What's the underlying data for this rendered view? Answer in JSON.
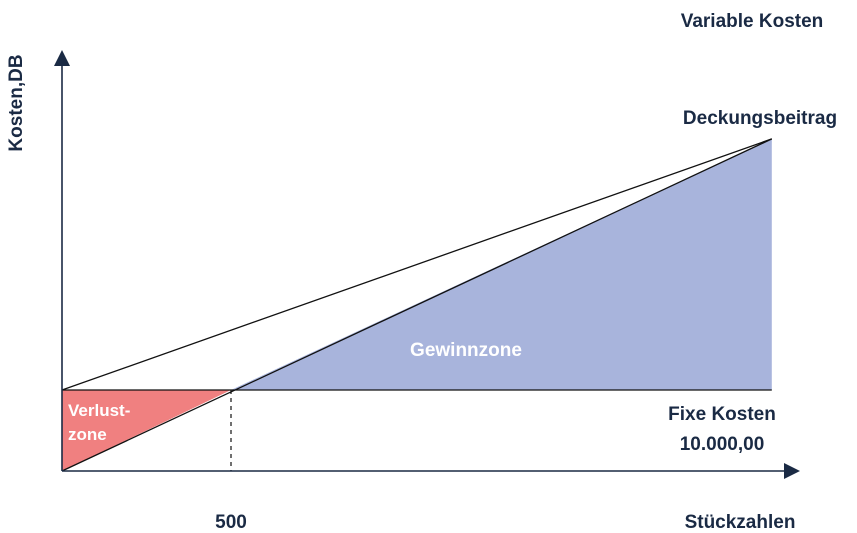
{
  "chart_data": {
    "type": "area",
    "title": "",
    "xlabel": "Stückzahlen",
    "ylabel": "Kosten,DB",
    "x_tick": {
      "value": 500,
      "label": "500"
    },
    "fixed_costs": {
      "value": 10000,
      "label_line1": "Fixe Kosten",
      "label_line2": "10.000,00"
    },
    "lines": [
      {
        "name": "Variable Kosten",
        "x": [
          0,
          2100
        ],
        "y": [
          10000,
          41000
        ]
      },
      {
        "name": "Deckungsbeitrag",
        "x": [
          0,
          2100
        ],
        "y": [
          0,
          41000
        ]
      }
    ],
    "zones": [
      {
        "label_line1": "Verlust-",
        "label_line2": "zone",
        "x_range": [
          0,
          500
        ],
        "color": "#f08080"
      },
      {
        "label_line1": "Gewinnzone",
        "label_line2": "",
        "x_range": [
          500,
          2100
        ],
        "color": "#a8b4dc"
      }
    ],
    "xlim": [
      0,
      2100
    ],
    "ylim": [
      0,
      45000
    ],
    "grid": false
  }
}
